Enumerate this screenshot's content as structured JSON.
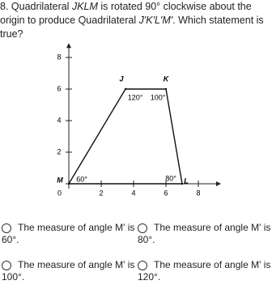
{
  "question": [
    "8. Quadrilateral ",
    "JKLM",
    " is rotated 90° clockwise about the origin to produce Quadrilateral ",
    "J'K'L'M'",
    ". Which statement is true?"
  ],
  "diagram": {
    "origin_label": "0",
    "xlim": [
      0,
      9
    ],
    "ylim": [
      0,
      8.5
    ],
    "xticks": [
      2,
      4,
      6,
      8
    ],
    "yticks": [
      2,
      4,
      6,
      8
    ],
    "vertices": [
      {
        "label": "M",
        "x": 0,
        "y": 0,
        "angle": "60°"
      },
      {
        "label": "J",
        "x": 3.5,
        "y": 6,
        "angle": "120°"
      },
      {
        "label": "K",
        "x": 6,
        "y": 6,
        "angle": "100°"
      },
      {
        "label": "L",
        "x": 7,
        "y": 0,
        "angle": "80°"
      }
    ]
  },
  "options": [
    "The measure of angle M' is 60°.",
    "The measure of angle M' is 80°.",
    "The measure of angle M' is 100°.",
    "The measure of angle M' is 120°."
  ]
}
